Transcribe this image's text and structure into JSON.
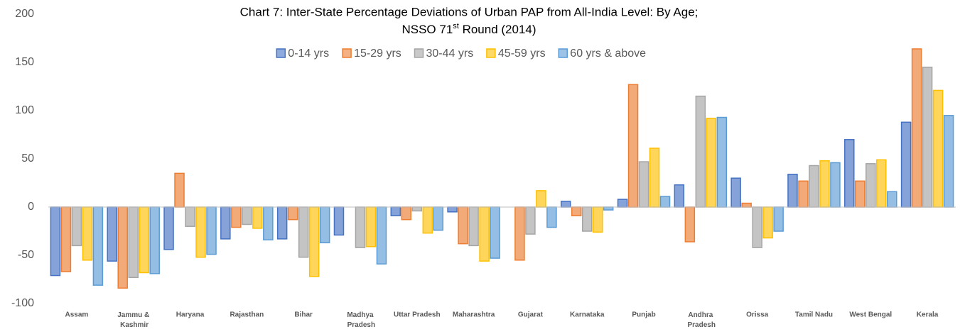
{
  "chart_data": {
    "type": "bar",
    "title": [
      "Chart 7: Inter-State Percentage Deviations of Urban PAP from All-India Level: By Age;",
      "NSSO 71st Round (2014)"
    ],
    "categories": [
      "Assam",
      "Jammu & Kashmir",
      "Haryana",
      "Rajasthan",
      "Bihar",
      "Madhya Pradesh",
      "Uttar Pradesh",
      "Maharashtra",
      "Gujarat",
      "Karnataka",
      "Punjab",
      "Andhra Pradesh",
      "Orissa",
      "Tamil Nadu",
      "West Bengal",
      "Kerala"
    ],
    "series": [
      {
        "name": "0-14 yrs",
        "color": "#4472c4",
        "values": [
          -71,
          -56,
          -44,
          -33,
          -33,
          -29,
          -9,
          -5,
          0,
          6,
          8,
          23,
          30,
          34,
          70,
          88
        ]
      },
      {
        "name": "15-29 yrs",
        "color": "#ed7d31",
        "values": [
          -67,
          -84,
          35,
          -21,
          -13,
          0,
          -13,
          -38,
          -55,
          -9,
          127,
          -36,
          4,
          27,
          27,
          164
        ]
      },
      {
        "name": "30-44 yrs",
        "color": "#a5a5a5",
        "values": [
          -40,
          -73,
          -20,
          -18,
          -52,
          -42,
          -4,
          -40,
          -28,
          -25,
          47,
          115,
          -42,
          43,
          45,
          145
        ]
      },
      {
        "name": "45-59 yrs",
        "color": "#ffc000",
        "values": [
          -55,
          -68,
          -52,
          -22,
          -72,
          -41,
          -27,
          -56,
          17,
          -26,
          61,
          92,
          -32,
          48,
          49,
          121
        ]
      },
      {
        "name": "60 yrs & above",
        "color": "#5b9bd5",
        "values": [
          -81,
          -69,
          -49,
          -34,
          -37,
          -59,
          -24,
          -53,
          -21,
          -3,
          11,
          93,
          -25,
          46,
          16,
          95
        ]
      }
    ],
    "ylim": [
      -100,
      200
    ],
    "yticks": [
      -100,
      -50,
      0,
      50,
      100,
      150,
      200
    ],
    "grid": false,
    "legend": "top"
  }
}
